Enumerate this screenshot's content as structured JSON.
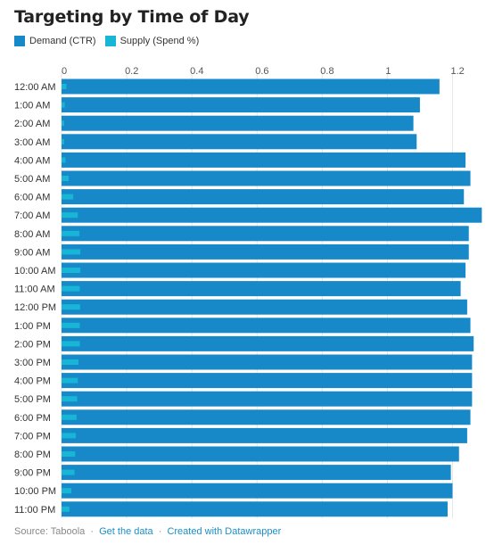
{
  "title": "Targeting by Time of Day",
  "colors": {
    "demand": "#1788c8",
    "supply": "#18b6d6",
    "grid": "#e6e6e6",
    "text": "#333333",
    "link": "#1a8fc7"
  },
  "footer": {
    "source": "Source: Taboola",
    "get_data": "Get the data",
    "created_with": "Created with Datawrapper",
    "separator": "·"
  },
  "chart_data": {
    "type": "bar",
    "orientation": "horizontal",
    "title": "Targeting by Time of Day",
    "xlim": [
      0,
      1.3
    ],
    "ticks": [
      0,
      0.2,
      0.4,
      0.6,
      0.8,
      1,
      1.2
    ],
    "tick_labels": [
      "0",
      "0.2",
      "0.4",
      "0.6",
      "0.8",
      "1",
      "1.2"
    ],
    "grid": true,
    "legend_position": "top-left",
    "categories": [
      "12:00 AM",
      "1:00 AM",
      "2:00 AM",
      "3:00 AM",
      "4:00 AM",
      "5:00 AM",
      "6:00 AM",
      "7:00 AM",
      "8:00 AM",
      "9:00 AM",
      "10:00 AM",
      "11:00 AM",
      "12:00 PM",
      "1:00 PM",
      "2:00 PM",
      "3:00 PM",
      "4:00 PM",
      "5:00 PM",
      "6:00 PM",
      "7:00 PM",
      "8:00 PM",
      "9:00 PM",
      "10:00 PM",
      "11:00 PM"
    ],
    "series": [
      {
        "name": "Demand (CTR)",
        "values": [
          1.16,
          1.1,
          1.08,
          1.09,
          1.24,
          1.255,
          1.235,
          1.29,
          1.25,
          1.25,
          1.24,
          1.225,
          1.245,
          1.255,
          1.265,
          1.26,
          1.26,
          1.26,
          1.255,
          1.245,
          1.22,
          1.195,
          1.2,
          1.185
        ]
      },
      {
        "name": "Supply (Spend %)",
        "values": [
          0.015,
          0.01,
          0.008,
          0.008,
          0.012,
          0.022,
          0.036,
          0.05,
          0.055,
          0.058,
          0.058,
          0.056,
          0.057,
          0.056,
          0.056,
          0.052,
          0.05,
          0.048,
          0.046,
          0.044,
          0.042,
          0.04,
          0.03,
          0.024
        ]
      }
    ]
  }
}
